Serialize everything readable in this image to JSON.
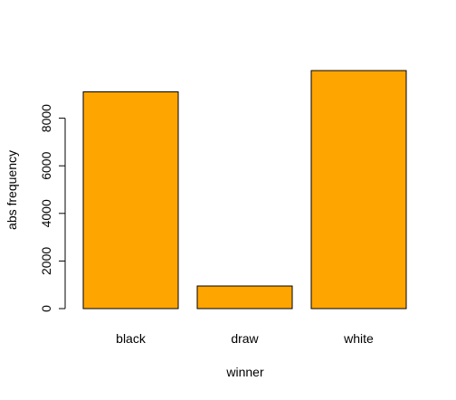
{
  "chart_data": {
    "type": "bar",
    "categories": [
      "black",
      "draw",
      "white"
    ],
    "values": [
      9107,
      950,
      10001
    ],
    "title": "",
    "xlabel": "winner",
    "ylabel": "abs frequency",
    "ylim": [
      0,
      10001
    ],
    "yticks": [
      0,
      2000,
      4000,
      6000,
      8000
    ],
    "bar_color": "#FFA500",
    "grid": false,
    "legend": "none"
  }
}
